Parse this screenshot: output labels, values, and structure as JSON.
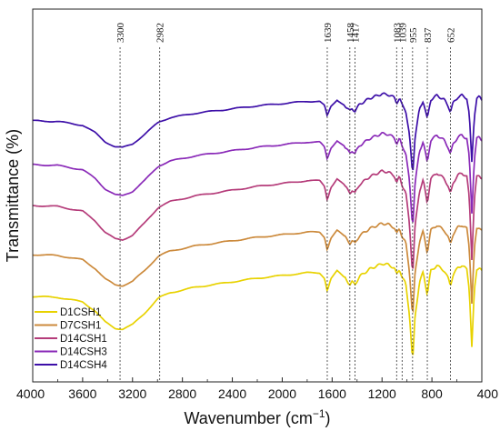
{
  "chart_data": {
    "type": "line",
    "xlabel": "Wavenumber (cm",
    "xlabel_sup": "−1",
    "xlabel_end": ")",
    "ylabel": "Transmittance (%)",
    "xlim": [
      4000,
      400
    ],
    "x_ticks": [
      4000,
      3600,
      3200,
      2800,
      2400,
      2000,
      1600,
      1200,
      800,
      400
    ],
    "x_tick_labels": [
      "4000",
      "3600",
      "3200",
      "2800",
      "2400",
      "2000",
      "1600",
      "1200",
      "800",
      "400"
    ],
    "grid": false,
    "legend_position": "bottom-left",
    "annotations": [
      {
        "x": 3300,
        "label": "3300"
      },
      {
        "x": 2982,
        "label": "2982"
      },
      {
        "x": 1639,
        "label": "1639"
      },
      {
        "x": 1458,
        "label": "1458"
      },
      {
        "x": 1417,
        "label": "1417"
      },
      {
        "x": 1083,
        "label": "1083"
      },
      {
        "x": 1039,
        "label": "1039"
      },
      {
        "x": 955,
        "label": "955"
      },
      {
        "x": 837,
        "label": "837"
      },
      {
        "x": 652,
        "label": "652"
      }
    ],
    "series": [
      {
        "name": "D1CSH1",
        "color": "#e8d200",
        "offset": 0
      },
      {
        "name": "D7CSH1",
        "color": "#cc8a3c",
        "offset": 1
      },
      {
        "name": "D14CSH1",
        "color": "#b53c7a",
        "offset": 2
      },
      {
        "name": "D14CSH3",
        "color": "#8a2ab8",
        "offset": 3
      },
      {
        "name": "D14CSH4",
        "color": "#3d0fa8",
        "offset": 4
      }
    ]
  }
}
